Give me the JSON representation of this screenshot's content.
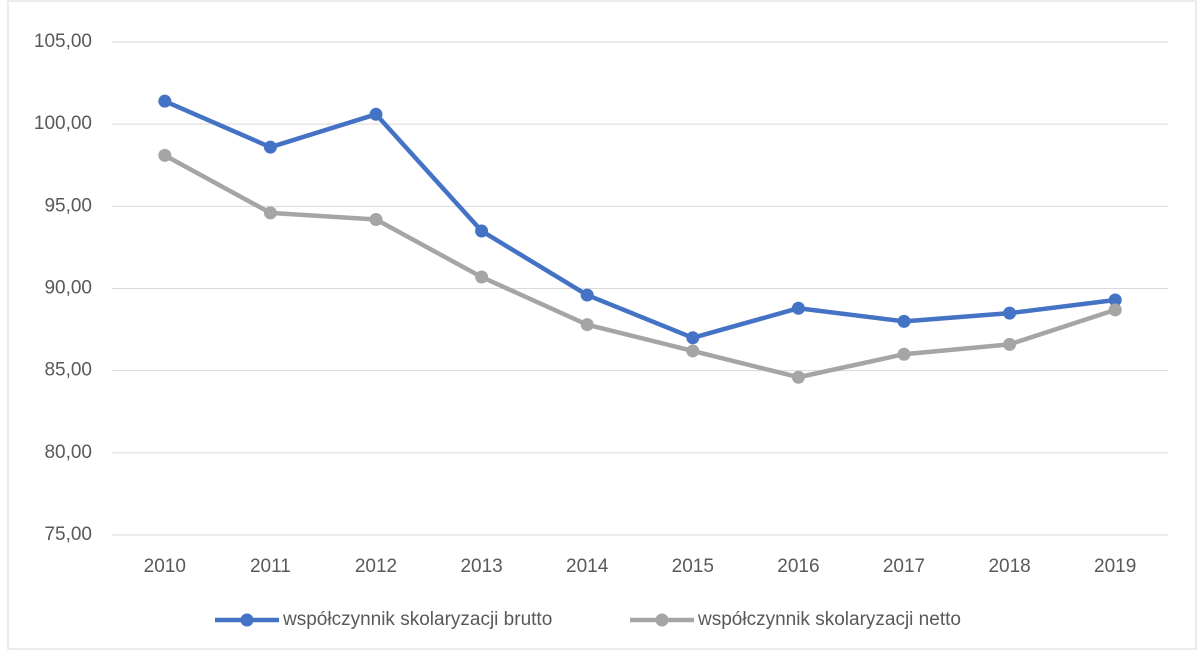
{
  "chart_data": {
    "type": "line",
    "categories": [
      "2010",
      "2011",
      "2012",
      "2013",
      "2014",
      "2015",
      "2016",
      "2017",
      "2018",
      "2019"
    ],
    "series": [
      {
        "name": "współczynnik skolaryzacji brutto",
        "color": "#4472c4",
        "values": [
          101.4,
          98.6,
          100.6,
          93.5,
          89.6,
          87.0,
          88.8,
          88.0,
          88.5,
          89.3
        ]
      },
      {
        "name": "współczynnik skolaryzacji netto",
        "color": "#a5a5a5",
        "values": [
          98.1,
          94.6,
          94.2,
          90.7,
          87.8,
          86.2,
          84.6,
          86.0,
          86.6,
          88.7
        ]
      }
    ],
    "ylim": [
      75,
      105
    ],
    "yticks": [
      {
        "value": 75,
        "label": "75,00"
      },
      {
        "value": 80,
        "label": "80,00"
      },
      {
        "value": 85,
        "label": "85,00"
      },
      {
        "value": 90,
        "label": "90,00"
      },
      {
        "value": 95,
        "label": "95,00"
      },
      {
        "value": 100,
        "label": "100,00"
      },
      {
        "value": 105,
        "label": "105,00"
      }
    ],
    "grid": true,
    "legend": "bottom"
  }
}
